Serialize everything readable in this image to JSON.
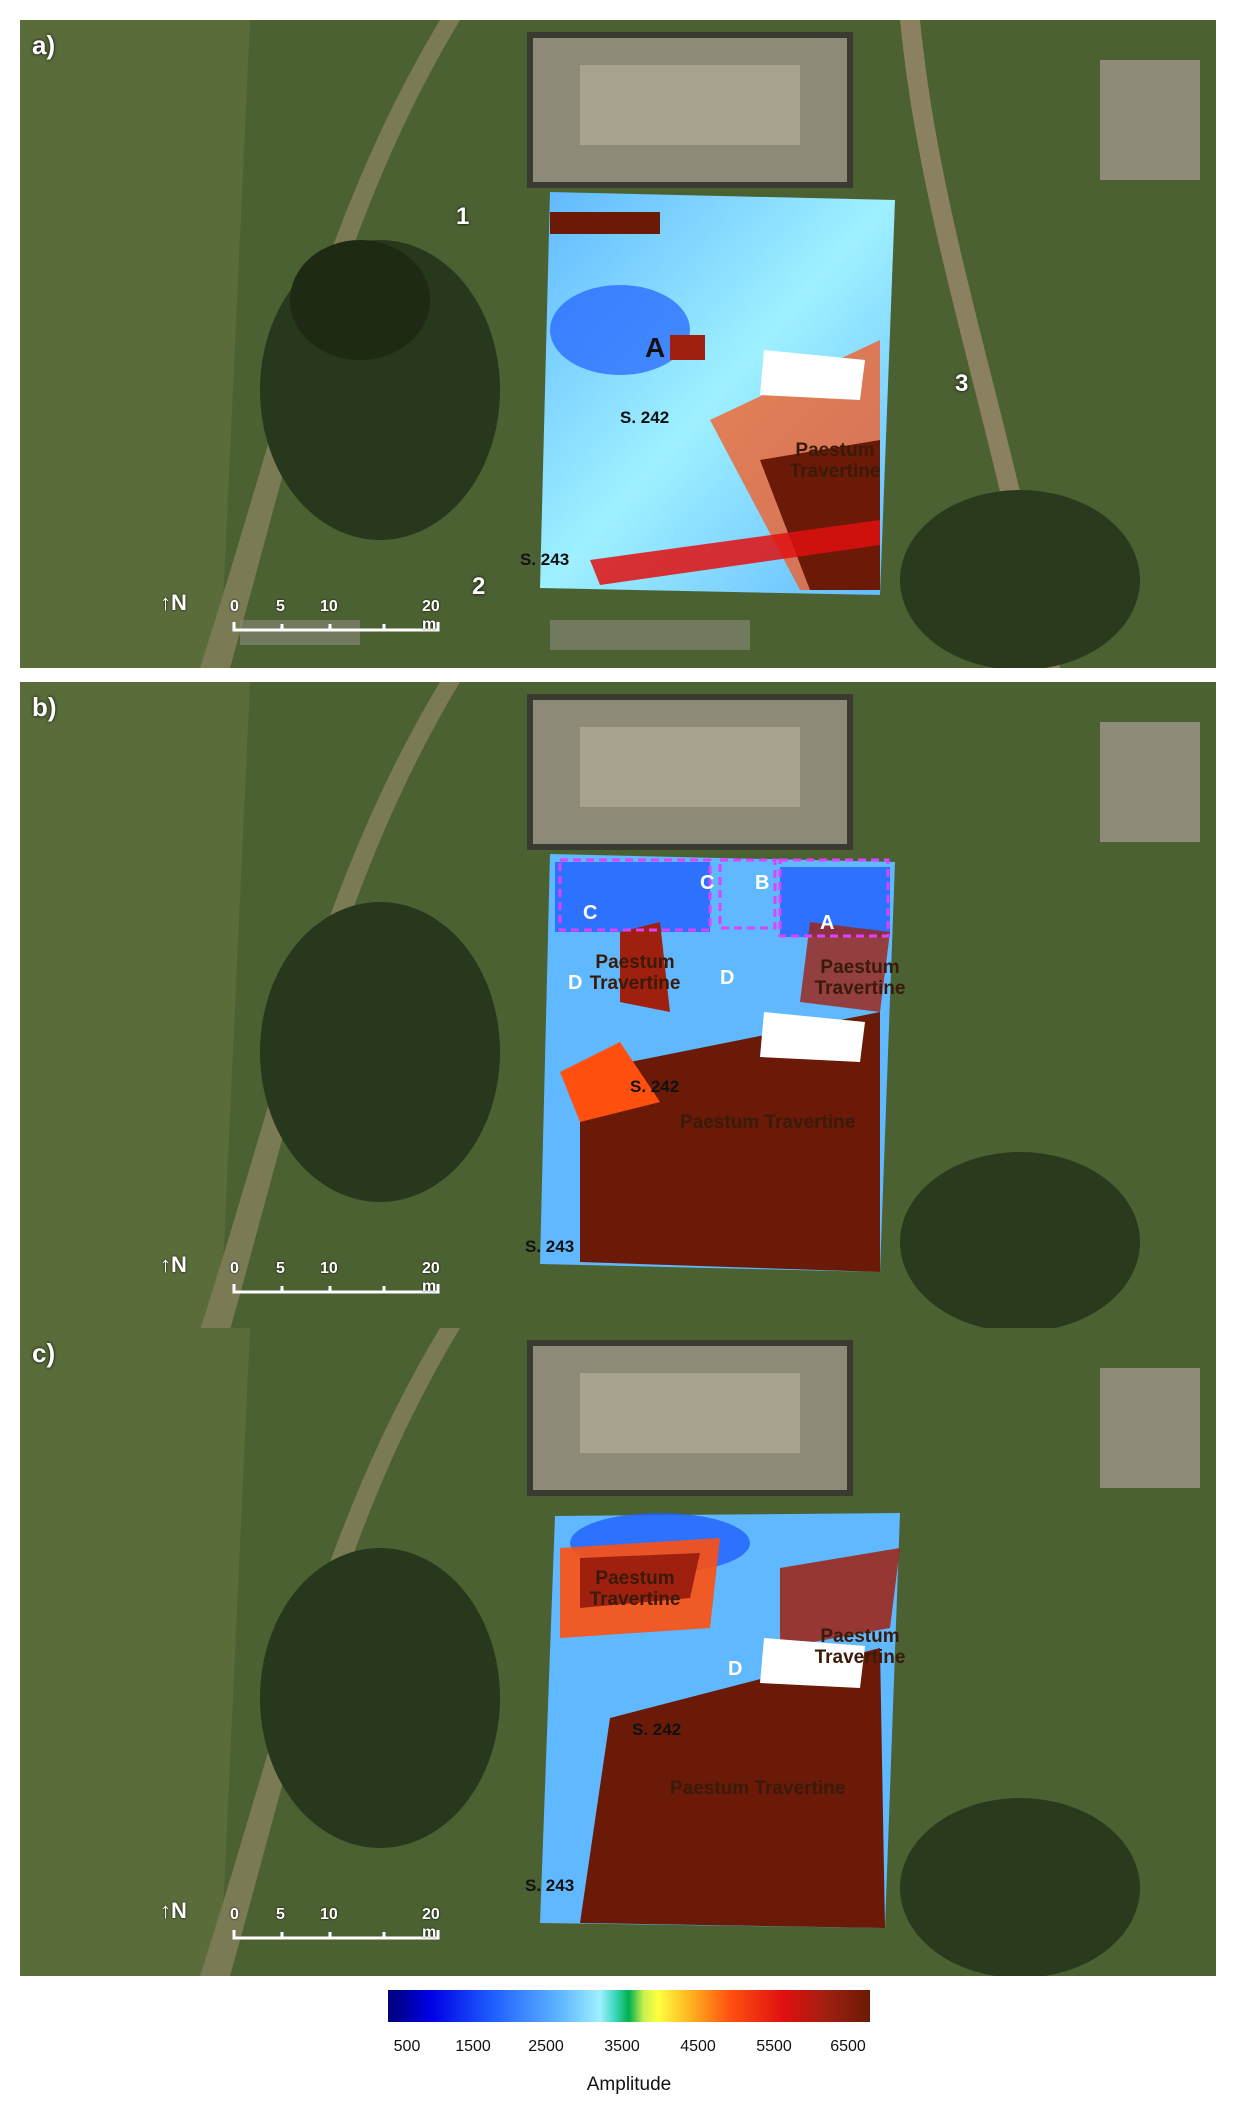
{
  "panels": [
    {
      "label": "a)",
      "annotations": {
        "arrow1": "1",
        "arrow2": "2",
        "arrow3": "3",
        "zoneA": "A",
        "s242": "S. 242",
        "s243": "S. 243",
        "travertine": [
          "Paestum Travertine"
        ]
      }
    },
    {
      "label": "b)",
      "annotations": {
        "zones": [
          "C",
          "C",
          "B",
          "A",
          "D",
          "D"
        ],
        "s242": "S. 242",
        "s243": "S. 243",
        "travertine": [
          "Paestum Travertine",
          "Paestum Travertine",
          "Paestum Travertine"
        ]
      }
    },
    {
      "label": "c)",
      "annotations": {
        "zoneD": "D",
        "s242": "S. 242",
        "s243": "S. 243",
        "travertine": [
          "Paestum Travertine",
          "Paestum Travertine",
          "Paestum Travertine"
        ]
      }
    }
  ],
  "scale": {
    "ticks": [
      "0",
      "5",
      "10",
      "20 m"
    ],
    "north": "N"
  },
  "colorbar": {
    "title": "Amplitude",
    "ticks": [
      "500",
      "1500",
      "2500",
      "3500",
      "4500",
      "5500",
      "6500"
    ],
    "colors": [
      "#00007a",
      "#0000e6",
      "#2060ff",
      "#60b8ff",
      "#9ff0ff",
      "#00b050",
      "#ffff40",
      "#ffb020",
      "#ff5010",
      "#e01010",
      "#6a1a06"
    ]
  }
}
